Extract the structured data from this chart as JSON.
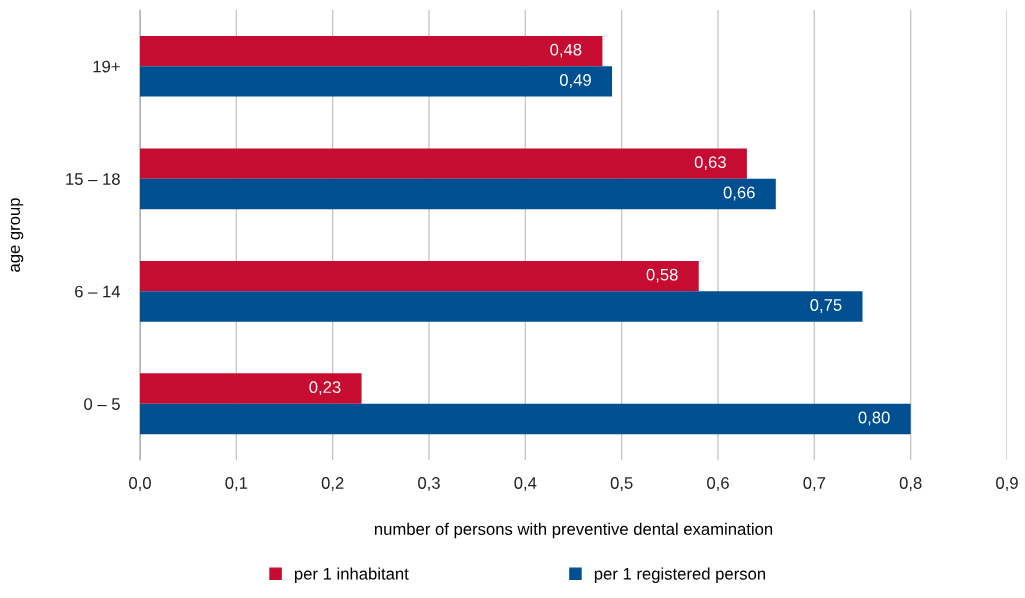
{
  "chart_data": {
    "type": "bar",
    "orientation": "horizontal",
    "categories": [
      "19+",
      "15 – 18",
      "6 – 14",
      "0 – 5"
    ],
    "series": [
      {
        "name": "per 1 inhabitant",
        "color": "#c60c30",
        "values": [
          0.48,
          0.63,
          0.58,
          0.23
        ],
        "value_labels": [
          "0,48",
          "0,63",
          "0,58",
          "0,23"
        ]
      },
      {
        "name": "per 1 registered person",
        "color": "#004f91",
        "values": [
          0.49,
          0.66,
          0.75,
          0.8
        ],
        "value_labels": [
          "0,49",
          "0,66",
          "0,75",
          "0,80"
        ]
      }
    ],
    "xlabel": "number of persons with preventive dental examination",
    "ylabel": "age group",
    "xlim": [
      0,
      0.9
    ],
    "xticks": [
      {
        "value": 0,
        "label": "0,0"
      },
      {
        "value": 0.1,
        "label": "0,1"
      },
      {
        "value": 0.2,
        "label": "0,2"
      },
      {
        "value": 0.3,
        "label": "0,3"
      },
      {
        "value": 0.4,
        "label": "0,4"
      },
      {
        "value": 0.5,
        "label": "0,5"
      },
      {
        "value": 0.6,
        "label": "0,6"
      },
      {
        "value": 0.7,
        "label": "0,7"
      },
      {
        "value": 0.8,
        "label": "0,8"
      },
      {
        "value": 0.9,
        "label": "0,9"
      }
    ],
    "grid": "x",
    "legend": "bottom"
  }
}
